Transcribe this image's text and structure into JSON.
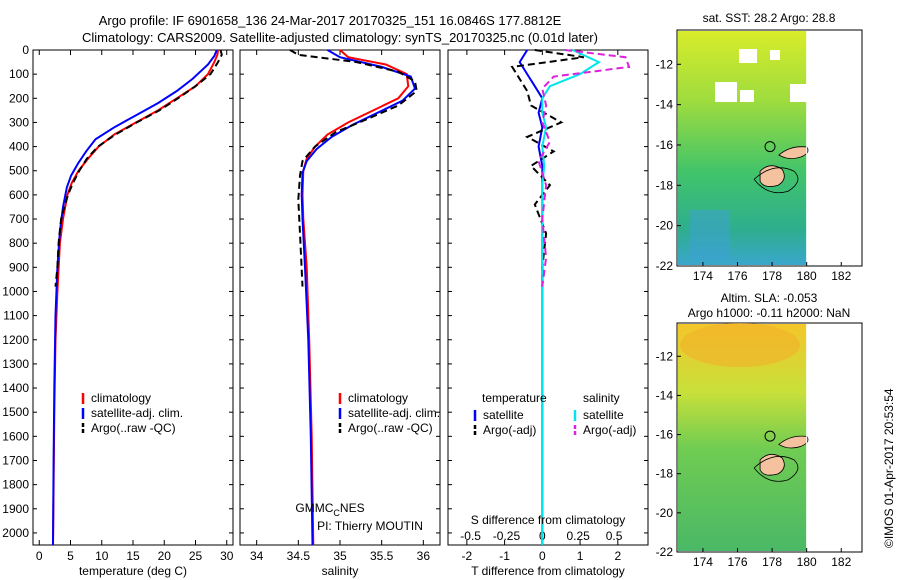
{
  "figure": {
    "title_line1": "Argo profile: IF 6901658_136 24-Mar-2017 20170325_151 16.0846S 177.8812E",
    "title_line2": "Climatology: CARS2009. Satellite-adjusted climatology: synTS_20170325.nc (0.01d later)",
    "side_stamp": "©IMOS 01-Apr-2017 20:53:54",
    "credit_line1_main": "GMMC",
    "credit_line1_sub": "C",
    "credit_line1_tail": "NES",
    "credit_line2": "PI: Thierry MOUTIN"
  },
  "chart_data": [
    {
      "id": "temperature",
      "type": "line",
      "xlabel": "temperature (deg C)",
      "xlim": [
        -1,
        31
      ],
      "xticks": [
        0,
        5,
        10,
        15,
        20,
        25,
        30
      ],
      "ylim": [
        0,
        2050
      ],
      "yticks": [
        0,
        100,
        200,
        300,
        400,
        500,
        600,
        700,
        800,
        900,
        1000,
        1100,
        1200,
        1300,
        1400,
        1500,
        1600,
        1700,
        1800,
        1900,
        2000
      ],
      "legend": [
        "climatology",
        "satellite-adj. clim.",
        "Argo(..raw -QC)"
      ],
      "series": [
        {
          "name": "climatology",
          "color": "#ff0000",
          "dash": "",
          "x": [
            28.6,
            28.5,
            28.0,
            27.0,
            25.0,
            22.0,
            19.0,
            15.5,
            12.0,
            9.5,
            7.8,
            6.3,
            5.2,
            4.5,
            3.8,
            3.3,
            2.9,
            2.6,
            2.4,
            2.3,
            2.2
          ],
          "y": [
            0,
            20,
            50,
            100,
            150,
            200,
            250,
            300,
            350,
            400,
            450,
            500,
            550,
            600,
            700,
            800,
            1000,
            1200,
            1500,
            1800,
            2050
          ]
        },
        {
          "name": "satellite-adj. clim.",
          "color": "#0000ff",
          "dash": "",
          "x": [
            28.4,
            28.0,
            27.0,
            24.5,
            22.0,
            19.0,
            15.5,
            12.0,
            9.0,
            7.5,
            6.2,
            5.1,
            4.4,
            3.8,
            3.3,
            2.9,
            2.6,
            2.4,
            2.3,
            2.2
          ],
          "y": [
            0,
            25,
            60,
            120,
            170,
            220,
            270,
            320,
            370,
            420,
            470,
            520,
            570,
            650,
            750,
            900,
            1100,
            1400,
            1700,
            2050
          ]
        },
        {
          "name": "Argo(..raw -QC)",
          "color": "#000000",
          "dash": "7,4",
          "x": [
            29.0,
            29.2,
            28.6,
            27.4,
            25.0,
            22.2,
            19.2,
            15.6,
            12.2,
            9.4,
            7.6,
            6.4,
            5.4,
            4.6,
            4.0,
            3.5,
            3.1,
            2.9,
            2.6
          ],
          "y": [
            0,
            20,
            50,
            100,
            150,
            200,
            250,
            300,
            350,
            400,
            450,
            500,
            550,
            600,
            650,
            700,
            800,
            900,
            980
          ]
        }
      ]
    },
    {
      "id": "salinity",
      "type": "line",
      "xlabel": "salinity",
      "xlim": [
        33.8,
        36.2
      ],
      "xticks": [
        34,
        34.5,
        35,
        35.5,
        36
      ],
      "ylim": [
        0,
        2050
      ],
      "legend": [
        "climatology",
        "satellite-adj. clim.",
        "Argo(..raw -QC)"
      ],
      "series": [
        {
          "name": "climatology",
          "color": "#ff0000",
          "dash": "",
          "x": [
            35.0,
            35.1,
            35.55,
            35.8,
            35.82,
            35.7,
            35.4,
            35.1,
            34.85,
            34.7,
            34.6,
            34.56,
            34.55,
            34.56,
            34.6,
            34.63,
            34.66,
            34.68
          ],
          "y": [
            0,
            30,
            60,
            100,
            150,
            200,
            250,
            300,
            350,
            400,
            450,
            500,
            600,
            700,
            900,
            1200,
            1600,
            2050
          ]
        },
        {
          "name": "satellite-adj. clim.",
          "color": "#0000ff",
          "dash": "",
          "x": [
            34.85,
            35.0,
            35.5,
            35.85,
            35.9,
            35.75,
            35.45,
            35.15,
            34.9,
            34.72,
            34.6,
            34.55,
            34.54,
            34.55,
            34.58,
            34.62,
            34.65,
            34.67
          ],
          "y": [
            0,
            30,
            70,
            110,
            160,
            210,
            260,
            310,
            360,
            410,
            460,
            510,
            600,
            700,
            900,
            1200,
            1600,
            2050
          ]
        },
        {
          "name": "Argo(..raw -QC)",
          "color": "#000000",
          "dash": "7,4",
          "x": [
            34.4,
            34.5,
            35.2,
            35.7,
            35.9,
            35.92,
            35.7,
            35.3,
            34.95,
            34.7,
            34.55,
            34.52,
            34.5,
            34.52,
            34.55
          ],
          "y": [
            0,
            20,
            50,
            90,
            130,
            170,
            230,
            290,
            340,
            400,
            460,
            520,
            620,
            760,
            980
          ]
        }
      ]
    },
    {
      "id": "difference",
      "type": "line",
      "xlabel": "T difference from climatology",
      "xlabel_top": "S difference from climatology",
      "xlim": [
        -2.5,
        2.8
      ],
      "xticks": [
        -2,
        -1,
        0,
        1,
        2
      ],
      "sticks_labels": [
        "-0.5",
        "-0.25",
        "0",
        "0.25",
        "0.5"
      ],
      "sticks_pos": [
        -1.9,
        -0.95,
        0,
        0.95,
        1.9
      ],
      "ylim": [
        0,
        2050
      ],
      "legend": [
        "temperature",
        "satellite",
        "Argo(-adj)",
        "salinity",
        "satellite",
        "Argo(-adj)"
      ],
      "series": [
        {
          "name": "satellite",
          "color": "#0000ff",
          "dash": "",
          "x": [
            -0.4,
            -0.6,
            -0.4,
            -0.2,
            0.0,
            -0.1,
            0.0,
            -0.1,
            0.0,
            0.0,
            0.0,
            0.0,
            0.0,
            0.0
          ],
          "y": [
            0,
            50,
            100,
            150,
            200,
            260,
            320,
            400,
            480,
            560,
            700,
            900,
            1400,
            2050
          ]
        },
        {
          "name": "Argo(-adj)",
          "color": "#000000",
          "dash": "7,4",
          "x": [
            -0.2,
            1.1,
            -0.8,
            -0.6,
            -0.4,
            -0.3,
            0.5,
            -0.4,
            0.3,
            -0.3,
            0.2,
            -0.2,
            0.1,
            0.0,
            0.0
          ],
          "y": [
            0,
            30,
            70,
            120,
            170,
            230,
            300,
            360,
            420,
            480,
            560,
            640,
            760,
            900,
            980
          ]
        },
        {
          "name": "satellite",
          "color": "#00e5ee",
          "dash": "",
          "x": [
            0.8,
            1.5,
            1.0,
            0.2,
            0.0,
            0.0,
            0.1,
            0.0,
            0.05,
            0.0,
            0.0,
            0.0,
            0.0,
            0.0
          ],
          "y": [
            0,
            50,
            100,
            150,
            200,
            260,
            320,
            400,
            480,
            560,
            700,
            900,
            1400,
            2050
          ]
        },
        {
          "name": "Argo(-adj)",
          "color": "#dd22dd",
          "dash": "7,4",
          "x": [
            0.6,
            2.2,
            2.3,
            0.3,
            0.0,
            0.1,
            0.0,
            0.2,
            -0.1,
            0.1,
            0.0,
            0.1,
            0.0
          ],
          "y": [
            0,
            30,
            70,
            110,
            160,
            230,
            300,
            380,
            460,
            560,
            700,
            860,
            980
          ]
        }
      ]
    },
    {
      "id": "sst-map",
      "type": "heatmap",
      "title": "sat. SST: 28.2 Argo: 28.8",
      "xticks": [
        174,
        176,
        178,
        180,
        182
      ],
      "yticks": [
        -12,
        -14,
        -16,
        -18,
        -20,
        -22
      ],
      "xlim": [
        172.5,
        183.2
      ],
      "ylim": [
        -22.0,
        -10.3
      ]
    },
    {
      "id": "sla-map",
      "type": "heatmap",
      "title_line1": "Altim. SLA: -0.053",
      "title_line2": "Argo h1000: -0.11 h2000: NaN",
      "xticks": [
        174,
        176,
        178,
        180,
        182
      ],
      "yticks": [
        -12,
        -14,
        -16,
        -18,
        -20,
        -22
      ],
      "xlim": [
        172.5,
        183.2
      ],
      "ylim": [
        -22.0,
        -10.3
      ]
    }
  ]
}
